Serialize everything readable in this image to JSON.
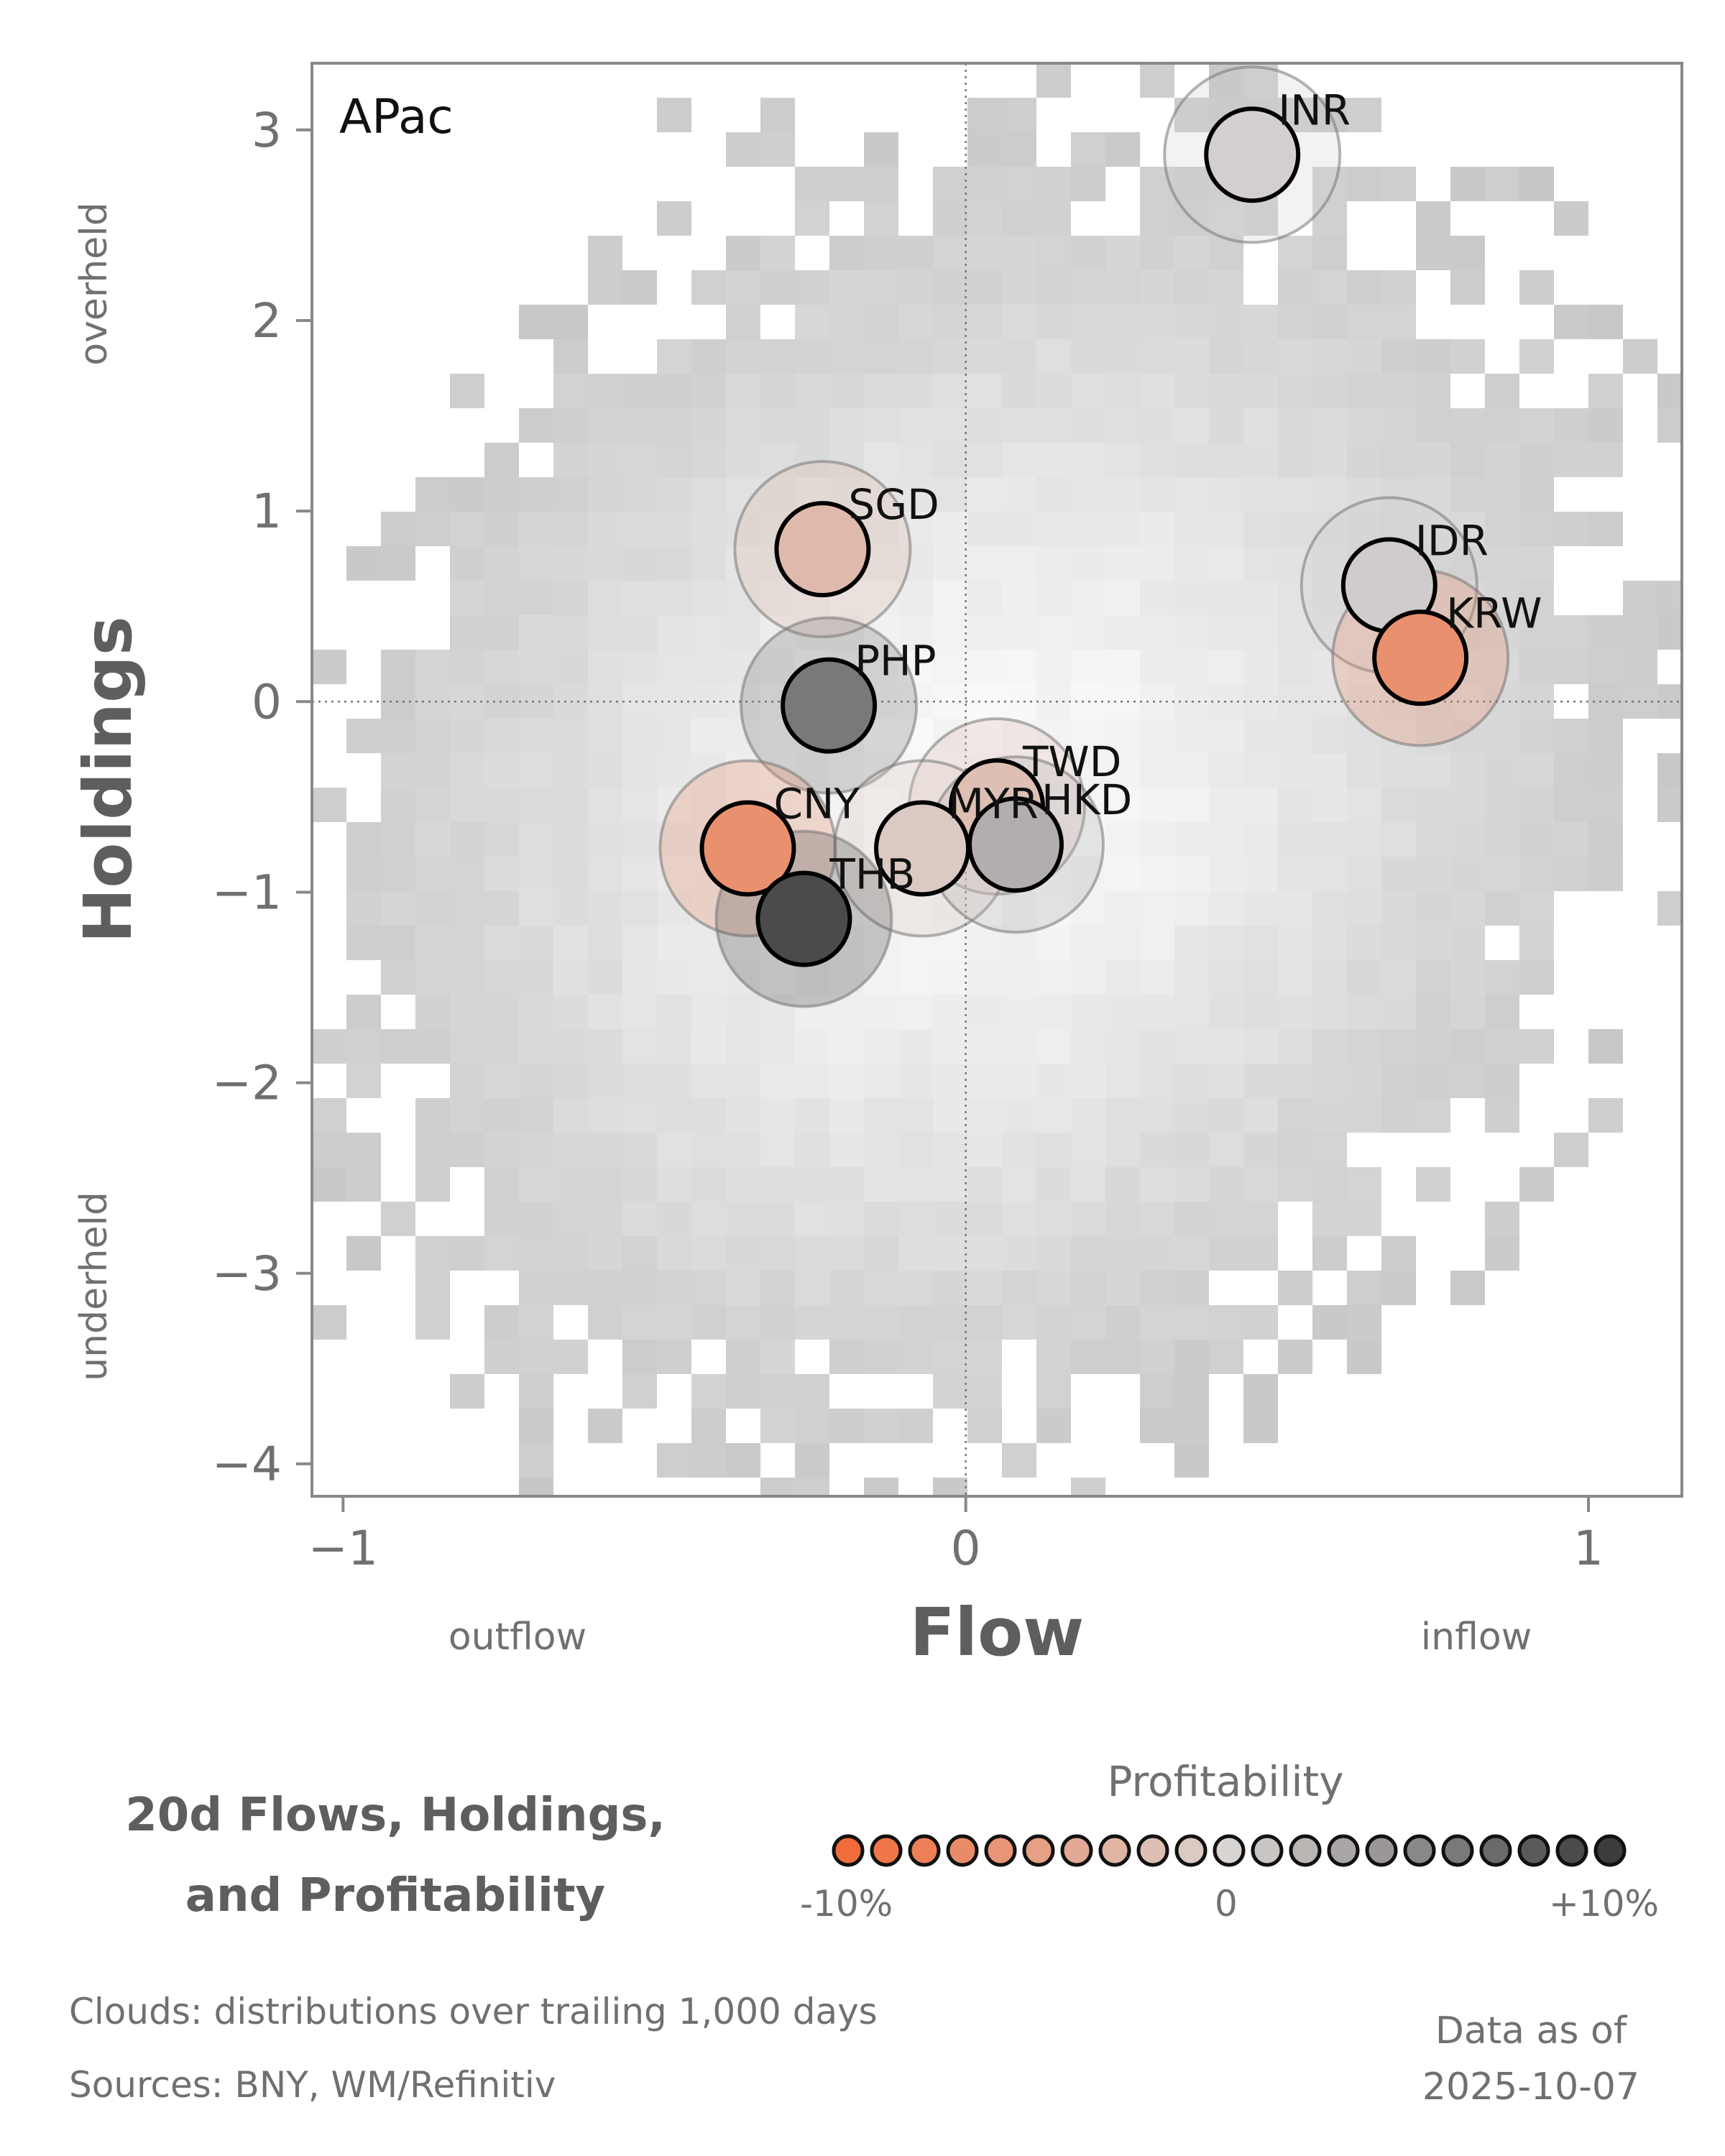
{
  "title_lines": [
    "20d Flows, Holdings,",
    "and Profitability"
  ],
  "chart_data": {
    "type": "scatter",
    "panel_label": "APac",
    "xlabel": "Flow",
    "ylabel": "Holdings",
    "xlim": [
      -1.05,
      1.15
    ],
    "ylim": [
      -4.17,
      3.35
    ],
    "xticks": [
      -1,
      0,
      1
    ],
    "yticks": [
      3,
      2,
      1,
      0,
      -1,
      -2,
      -3,
      -4
    ],
    "x_direction_labels": {
      "negative": "outflow",
      "positive": "inflow"
    },
    "y_direction_labels": {
      "positive": "overheld",
      "negative": "underheld"
    },
    "reference_lines": {
      "x": 0,
      "y": 0
    },
    "grid": false,
    "points": [
      {
        "label": "INR",
        "x": 0.46,
        "y": 2.87,
        "profitability": 0.3
      },
      {
        "label": "SGD",
        "x": -0.23,
        "y": 0.8,
        "profitability": -2.5
      },
      {
        "label": "IDR",
        "x": 0.68,
        "y": 0.61,
        "profitability": 0.5
      },
      {
        "label": "KRW",
        "x": 0.73,
        "y": 0.23,
        "profitability": -6.5
      },
      {
        "label": "PHP",
        "x": -0.22,
        "y": -0.02,
        "profitability": 6.0
      },
      {
        "label": "TWD",
        "x": 0.05,
        "y": -0.55,
        "profitability": -2.0
      },
      {
        "label": "MYR",
        "x": -0.07,
        "y": -0.77,
        "profitability": -1.0
      },
      {
        "label": "HKD",
        "x": 0.08,
        "y": -0.75,
        "profitability": 2.5
      },
      {
        "label": "CNY",
        "x": -0.35,
        "y": -0.77,
        "profitability": -6.5
      },
      {
        "label": "THB",
        "x": -0.26,
        "y": -1.14,
        "profitability": 9.0
      }
    ],
    "legend": {
      "title": "Profitability",
      "tick_labels": [
        "-10%",
        "0",
        "+10%"
      ],
      "range": [
        -10,
        10
      ],
      "colors": {
        "negative": "#f26b3a",
        "neutral": "#d8d4d2",
        "positive": "#3c3c3c"
      }
    }
  },
  "footer": {
    "clouds": "Clouds:  distributions over trailing 1,000 days",
    "sources": "Sources:  BNY, WM/Refinitiv",
    "asof_label": "Data as of",
    "asof_date": "2025-10-07"
  }
}
